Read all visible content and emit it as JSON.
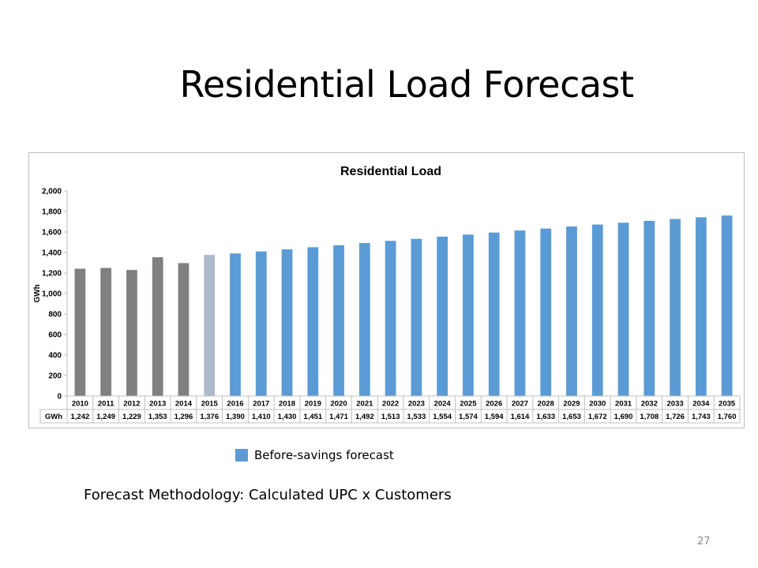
{
  "slide": {
    "title": "Residential Load Forecast",
    "legend_label": "Before-savings  forecast",
    "methodology": "Forecast Methodology: Calculated UPC x Customers",
    "page_number": "27"
  },
  "colors": {
    "historical": "#808080",
    "base_year": "#adb9ca",
    "forecast": "#5b9bd5"
  },
  "chart_data": {
    "type": "bar",
    "title": "Residential Load",
    "ylabel": "GWh",
    "ylim": [
      0,
      2000
    ],
    "yticks": [
      0,
      200,
      400,
      600,
      800,
      1000,
      1200,
      1400,
      1600,
      1800,
      2000
    ],
    "ytick_labels": [
      "0",
      "200",
      "400",
      "600",
      "800",
      "1,000",
      "1,200",
      "1,400",
      "1,600",
      "1,800",
      "2,000"
    ],
    "grid": false,
    "categories": [
      "2010",
      "2011",
      "2012",
      "2013",
      "2014",
      "2015",
      "2016",
      "2017",
      "2018",
      "2019",
      "2020",
      "2021",
      "2022",
      "2023",
      "2024",
      "2025",
      "2026",
      "2027",
      "2028",
      "2029",
      "2030",
      "2031",
      "2032",
      "2033",
      "2034",
      "2035"
    ],
    "values": [
      1242,
      1249,
      1229,
      1353,
      1296,
      1376,
      1390,
      1410,
      1430,
      1451,
      1471,
      1492,
      1513,
      1533,
      1554,
      1574,
      1594,
      1614,
      1633,
      1653,
      1672,
      1690,
      1708,
      1726,
      1743,
      1760
    ],
    "value_labels": [
      "1,242",
      "1,249",
      "1,229",
      "1,353",
      "1,296",
      "1,376",
      "1,390",
      "1,410",
      "1,430",
      "1,451",
      "1,471",
      "1,492",
      "1,513",
      "1,533",
      "1,554",
      "1,574",
      "1,594",
      "1,614",
      "1,633",
      "1,653",
      "1,672",
      "1,690",
      "1,708",
      "1,726",
      "1,743",
      "1,760"
    ],
    "bar_color_groups": [
      "historical",
      "historical",
      "historical",
      "historical",
      "historical",
      "base_year",
      "forecast",
      "forecast",
      "forecast",
      "forecast",
      "forecast",
      "forecast",
      "forecast",
      "forecast",
      "forecast",
      "forecast",
      "forecast",
      "forecast",
      "forecast",
      "forecast",
      "forecast",
      "forecast",
      "forecast",
      "forecast",
      "forecast",
      "forecast"
    ],
    "table_row_label": "GWh"
  }
}
